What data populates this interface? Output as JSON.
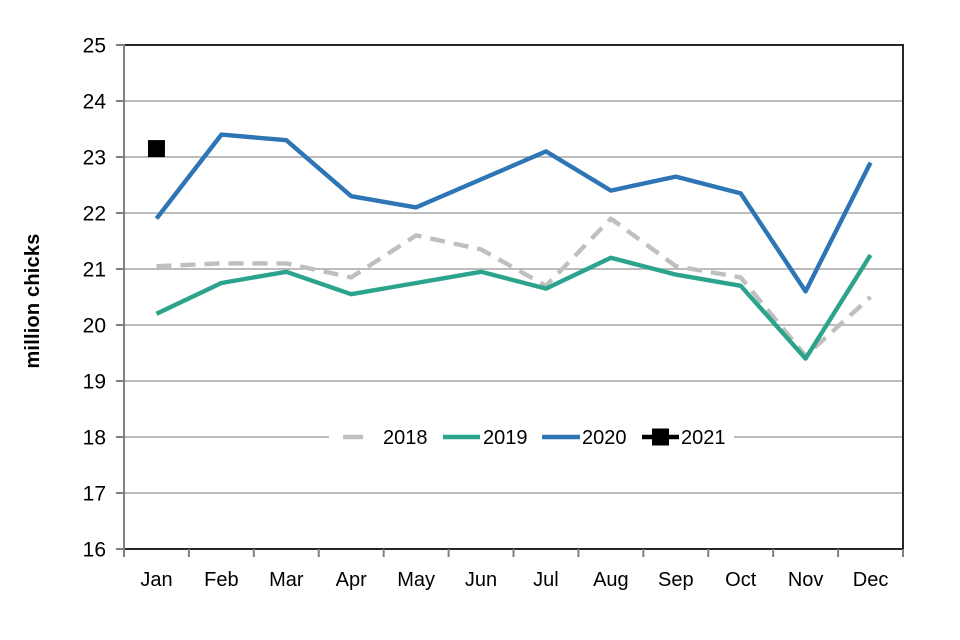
{
  "chart_data": {
    "type": "line",
    "title": "",
    "ylabel": "million chicks",
    "xlabel": "",
    "categories": [
      "Jan",
      "Feb",
      "Mar",
      "Apr",
      "May",
      "Jun",
      "Jul",
      "Aug",
      "Sep",
      "Oct",
      "Nov",
      "Dec"
    ],
    "ylim": [
      16,
      25
    ],
    "yticks": [
      16,
      17,
      18,
      19,
      20,
      21,
      22,
      23,
      24,
      25
    ],
    "grid": "horizontal-only",
    "legend_position": "inside-center-on-18-gridline",
    "legend_entries": [
      "2018",
      "2019",
      "2020",
      "2021"
    ],
    "series": [
      {
        "name": "2018",
        "style": "dashed",
        "color": "#BFBFBF",
        "values": [
          21.05,
          21.1,
          21.1,
          20.85,
          21.6,
          21.35,
          20.7,
          21.9,
          21.05,
          20.85,
          19.45,
          20.5
        ]
      },
      {
        "name": "2019",
        "style": "solid",
        "color": "#2CA48D",
        "values": [
          20.2,
          20.75,
          20.95,
          20.55,
          20.75,
          20.95,
          20.65,
          21.2,
          20.9,
          20.7,
          19.4,
          21.25
        ]
      },
      {
        "name": "2020",
        "style": "solid",
        "color": "#2E75B6",
        "values": [
          21.9,
          23.4,
          23.3,
          22.3,
          22.1,
          22.6,
          23.1,
          22.4,
          22.65,
          22.35,
          20.6,
          22.9
        ]
      },
      {
        "name": "2021",
        "style": "marker-square",
        "color": "#000000",
        "values": [
          23.15,
          null,
          null,
          null,
          null,
          null,
          null,
          null,
          null,
          null,
          null,
          null
        ]
      }
    ],
    "colors": {
      "gridline": "#A6A6A6",
      "frame": "#262626",
      "y_axis_line": "#808080",
      "text": "#000000"
    }
  }
}
